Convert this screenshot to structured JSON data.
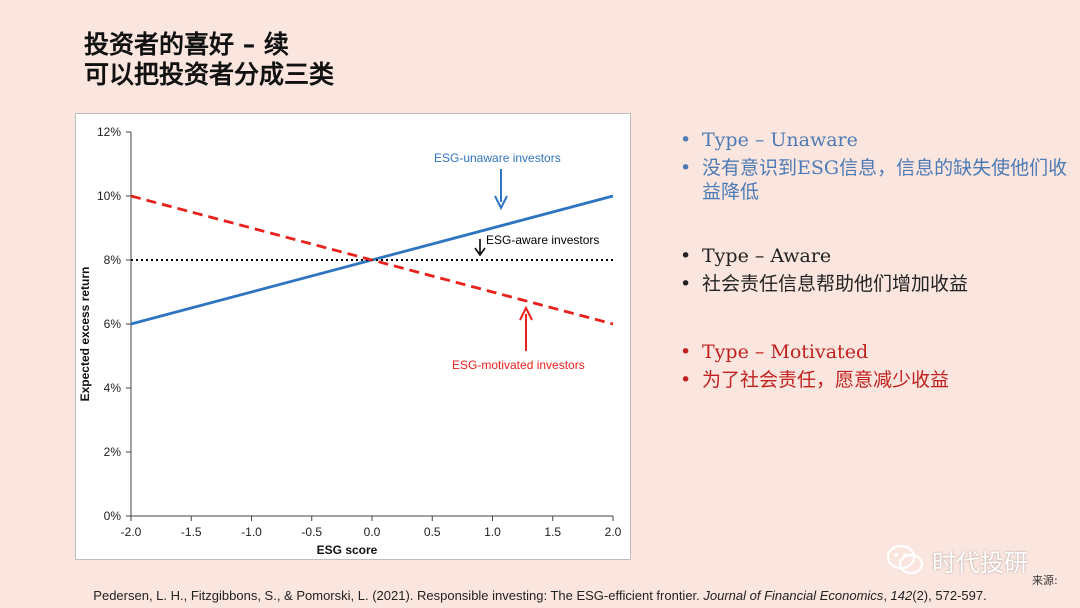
{
  "title": {
    "line1": "投资者的喜好 – 续",
    "line2": "可以把投资者分成三类"
  },
  "chart_data": {
    "type": "line",
    "xlabel": "ESG score",
    "ylabel": "Expected excess return",
    "xlim": [
      -2.0,
      2.0
    ],
    "ylim": [
      0,
      12
    ],
    "x_ticks": [
      "-2.0",
      "-1.5",
      "-1.0",
      "-0.5",
      "0.0",
      "0.5",
      "1.0",
      "1.5",
      "2.0"
    ],
    "y_ticks": [
      "0%",
      "2%",
      "4%",
      "6%",
      "8%",
      "10%",
      "12%"
    ],
    "grid": false,
    "series": [
      {
        "name": "ESG-unaware investors",
        "x": [
          -2.0,
          2.0
        ],
        "y": [
          6,
          10
        ],
        "color": "#2f74c0",
        "style": "solid"
      },
      {
        "name": "ESG-aware investors",
        "x": [
          -2.0,
          2.0
        ],
        "y": [
          8,
          8
        ],
        "color": "#000000",
        "style": "dotted"
      },
      {
        "name": "ESG-motivated investors",
        "x": [
          -2.0,
          2.0
        ],
        "y": [
          10,
          6
        ],
        "color": "#e8211c",
        "style": "dashed"
      }
    ],
    "annotations": [
      {
        "text": "ESG-unaware investors",
        "color": "#2f74c0"
      },
      {
        "text": "ESG-aware investors",
        "color": "#000000"
      },
      {
        "text": "ESG-motivated investors",
        "color": "#e8211c"
      }
    ]
  },
  "bullets": {
    "unaware": {
      "heading": "Type – Unaware",
      "text": "没有意识到ESG信息，信息的缺失使他们收益降低"
    },
    "aware": {
      "heading": "Type – Aware",
      "text": "社会责任信息帮助他们增加收益"
    },
    "motivated": {
      "heading": "Type – Motivated",
      "text": "为了社会责任，愿意减少收益"
    }
  },
  "watermark": "时代投研",
  "source_label": "来源:",
  "citation": {
    "authors": "Pedersen, L. H., Fitzgibbons, S., & Pomorski, L. (2021). Responsible investing: The ESG-efficient frontier. ",
    "journal": "Journal of Financial Economics",
    "volume": "142",
    "pages": "(2), 572-597."
  },
  "colors": {
    "background": "#fbe6df",
    "unaware": "#2f74c0",
    "motivated": "#e8211c",
    "aware": "#000000"
  }
}
